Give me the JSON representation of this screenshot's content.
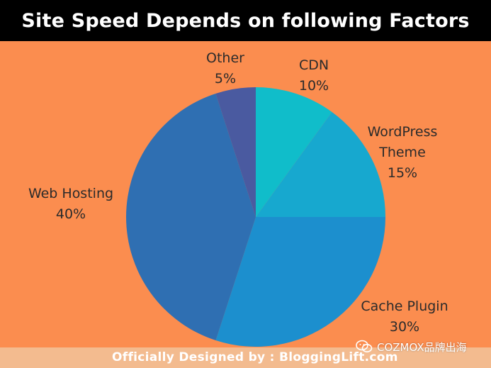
{
  "header": {
    "title": "Site Speed Depends on following Factors"
  },
  "footer": {
    "credit": "Officially Designed by : BloggingLift.com",
    "watermark": "COZMOX品牌出海",
    "watermark_icon": "wechat-icon"
  },
  "colors": {
    "background": "#fb8d4f",
    "title_bar": "#000000",
    "footer_bar": "#f3bb8f"
  },
  "chart_data": {
    "type": "pie",
    "title": "Site Speed Depends on following Factors",
    "start_angle_deg": 0,
    "direction": "clockwise",
    "slices": [
      {
        "label": "CDN",
        "label_lines": [
          "CDN"
        ],
        "value": 10,
        "value_text": "10%",
        "color": "#10bdca"
      },
      {
        "label": "WordPress Theme",
        "label_lines": [
          "WordPress",
          "Theme"
        ],
        "value": 15,
        "value_text": "15%",
        "color": "#17a8cf"
      },
      {
        "label": "Cache Plugin",
        "label_lines": [
          "Cache Plugin"
        ],
        "value": 30,
        "value_text": "30%",
        "color": "#1c8fce"
      },
      {
        "label": "Web Hosting",
        "label_lines": [
          "Web Hosting"
        ],
        "value": 40,
        "value_text": "40%",
        "color": "#2f6fb2"
      },
      {
        "label": "Other",
        "label_lines": [
          "Other"
        ],
        "value": 5,
        "value_text": "5%",
        "color": "#4a5aa0"
      }
    ]
  }
}
